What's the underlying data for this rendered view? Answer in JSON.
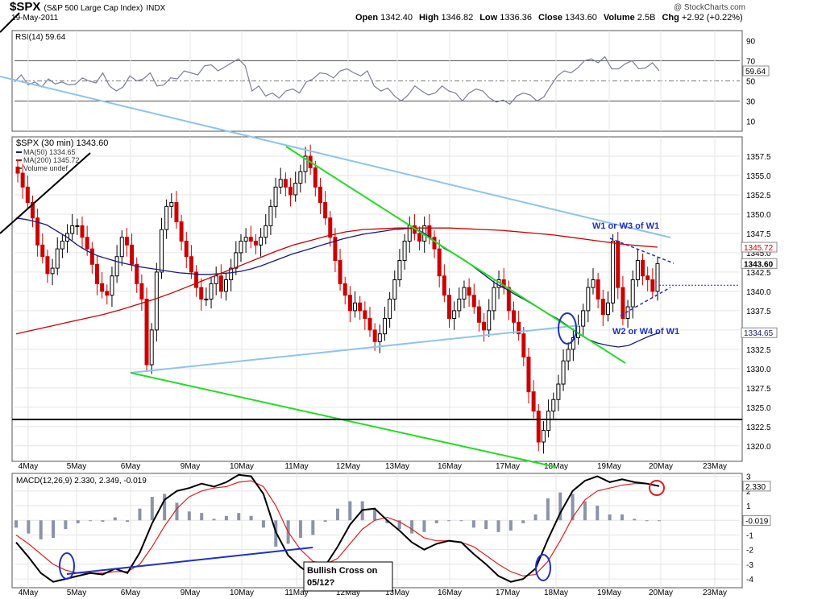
{
  "header": {
    "symbol": "$SPX",
    "description": "(S&P 500 Large Cap Index)",
    "exchange": "INDX",
    "date": "19-May-2011",
    "brand": "@ StockCharts.com",
    "ohlc": [
      {
        "label": "Open",
        "value": "1342.40"
      },
      {
        "label": "High",
        "value": "1346.82"
      },
      {
        "label": "Low",
        "value": "1336.36"
      },
      {
        "label": "Close",
        "value": "1343.60"
      },
      {
        "label": "Volume",
        "value": "2.5B"
      },
      {
        "label": "Chg",
        "value": "+2.92 (+0.22%)"
      }
    ]
  },
  "colors": {
    "ma50": "#1a1a80",
    "ma200": "#cc0000",
    "up_candle": "#000000",
    "down_candle": "#cc0000",
    "lightblue_trend": "#8ec3f0",
    "green_trend": "#22dd22",
    "annotation_blue": "#1f2fc8",
    "macd_hist": "#8c93a8"
  },
  "chart_data": [
    {
      "type": "line",
      "panel": "RSI",
      "label": "RSI(14) 59.64",
      "y_ticks": [
        10,
        30,
        50,
        70,
        90
      ],
      "ylim": [
        0,
        100
      ],
      "current_value_label": "59.64",
      "series": [
        {
          "name": "RSI(14)",
          "values": [
            49,
            56,
            46,
            49,
            44,
            52,
            47,
            49,
            46,
            47,
            53,
            50,
            48,
            58,
            45,
            40,
            44,
            55,
            50,
            52,
            58,
            45,
            46,
            53,
            52,
            60,
            58,
            56,
            65,
            66,
            60,
            64,
            68,
            72,
            65,
            40,
            45,
            35,
            38,
            33,
            40,
            42,
            38,
            49,
            52,
            58,
            57,
            53,
            60,
            62,
            58,
            55,
            60,
            45,
            40,
            43,
            35,
            30,
            36,
            45,
            40,
            36,
            38,
            45,
            40,
            38,
            30,
            38,
            42,
            40,
            33,
            29,
            31,
            27,
            35,
            38,
            36,
            30,
            34,
            45,
            55,
            60,
            58,
            63,
            70,
            72,
            68,
            74,
            62,
            62,
            67,
            70,
            62,
            63,
            68,
            60
          ]
        }
      ]
    },
    {
      "type": "candlestick",
      "panel": "price",
      "label": "$SPX (30 min) 1343.60",
      "legend": [
        {
          "name": "MA(50) 1334.65",
          "color": "#1a1a80"
        },
        {
          "name": "MA(200) 1345.72",
          "color": "#cc0000"
        },
        {
          "name": "Volume undef",
          "color": "#2a7a2a"
        }
      ],
      "y_ticks": [
        1320.0,
        1322.5,
        1325.0,
        1327.5,
        1330.0,
        1332.5,
        1335.0,
        1337.5,
        1340.0,
        1342.5,
        1345.0,
        1347.5,
        1350.0,
        1352.5,
        1355.0,
        1357.5
      ],
      "ylim": [
        1318,
        1360
      ],
      "x_ticks": [
        "4May",
        "5May",
        "6May",
        "9May",
        "10May",
        "11May",
        "12May",
        "13May",
        "16May",
        "17May",
        "18May",
        "19May",
        "20May",
        "23May"
      ],
      "closes": [
        1355.3,
        1353.5,
        1351.5,
        1349.5,
        1346.0,
        1344.5,
        1342.3,
        1343.0,
        1345.5,
        1346.5,
        1347.5,
        1348.5,
        1348.5,
        1347.0,
        1345.5,
        1343.5,
        1341.0,
        1340.0,
        1339.5,
        1342.0,
        1344.5,
        1347.0,
        1346.0,
        1343.5,
        1341.0,
        1339.0,
        1330.5,
        1335.0,
        1342.5,
        1348.0,
        1351.0,
        1351.5,
        1349.0,
        1346.5,
        1344.5,
        1342.5,
        1340.5,
        1339.0,
        1339.0,
        1341.0,
        1342.0,
        1340.0,
        1341.5,
        1343.0,
        1345.0,
        1346.5,
        1347.0,
        1346.5,
        1346.0,
        1347.0,
        1348.5,
        1351.0,
        1353.5,
        1354.5,
        1353.5,
        1352.5,
        1354.0,
        1355.5,
        1357.5,
        1356.0,
        1353.5,
        1351.5,
        1349.5,
        1347.0,
        1344.0,
        1341.0,
        1339.5,
        1337.5,
        1338.5,
        1337.5,
        1336.5,
        1335.0,
        1333.5,
        1334.5,
        1336.5,
        1339.0,
        1341.5,
        1344.0,
        1346.5,
        1348.5,
        1347.5,
        1346.5,
        1348.5,
        1347.0,
        1345.5,
        1342.0,
        1339.5,
        1336.5,
        1337.5,
        1339.0,
        1340.5,
        1339.5,
        1338.0,
        1336.0,
        1335.0,
        1337.5,
        1340.5,
        1341.5,
        1340.5,
        1337.5,
        1336.0,
        1334.5,
        1331.5,
        1327.0,
        1324.5,
        1320.5,
        1322.0,
        1324.5,
        1326.0,
        1328.0,
        1331.0,
        1332.5,
        1334.0,
        1335.5,
        1337.5,
        1340.5,
        1341.5,
        1339.0,
        1337.0,
        1338.5,
        1346.5,
        1340.5,
        1336.5,
        1338.0,
        1341.5,
        1344.0,
        1342.0,
        1341.5,
        1340.0,
        1343.6
      ],
      "ma50": [
        1349.5,
        1349.3,
        1349.0,
        1348.6,
        1347.8,
        1347.0,
        1346.0,
        1345.2,
        1344.6,
        1344.2,
        1343.8,
        1343.5,
        1343.2,
        1343.0,
        1342.8,
        1342.6,
        1342.4,
        1342.3,
        1342.2,
        1342.2,
        1342.3,
        1342.4,
        1342.6,
        1342.9,
        1343.3,
        1343.8,
        1344.3,
        1344.8,
        1345.2,
        1345.6,
        1346.0,
        1346.4,
        1346.8,
        1347.1,
        1347.4,
        1347.6,
        1347.8,
        1348.0,
        1348.1,
        1348.2,
        1347.5,
        1346.5,
        1345.5,
        1344.8,
        1344.0,
        1343.0,
        1342.0,
        1341.0,
        1340.3,
        1339.5,
        1338.8,
        1338.0,
        1337.2,
        1336.5,
        1335.6,
        1334.6,
        1333.8,
        1333.3,
        1333.0,
        1332.8,
        1333.0,
        1333.6,
        1334.2,
        1334.65
      ],
      "ma200": [
        1334.5,
        1335.0,
        1335.5,
        1336.0,
        1336.5,
        1337.0,
        1337.6,
        1338.3,
        1339.0,
        1339.8,
        1340.7,
        1341.6,
        1342.5,
        1343.4,
        1344.3,
        1345.2,
        1346.0,
        1346.6,
        1347.2,
        1347.7,
        1348.0,
        1348.1,
        1348.2,
        1348.2,
        1348.2,
        1348.2,
        1348.1,
        1348.0,
        1347.9,
        1347.7,
        1347.5,
        1347.3,
        1347.0,
        1346.7,
        1346.4,
        1346.1,
        1345.9,
        1345.72
      ],
      "annotations": [
        {
          "text": "W1 or W3 of W1"
        },
        {
          "text": "W2 or W4 of W1"
        }
      ],
      "current_value_labels": [
        "1345.72",
        "1343.60",
        "1334.65"
      ]
    },
    {
      "type": "line",
      "panel": "MACD",
      "label": "MACD(12,26,9) 2.330, 2.349, -0.019",
      "y_ticks": [
        3,
        2,
        1,
        0,
        -1,
        -2,
        -3,
        -4
      ],
      "ylim": [
        -4.6,
        3.2
      ],
      "x_ticks": [
        "4May",
        "5May",
        "6May",
        "9May",
        "10May",
        "11May",
        "12May",
        "13May",
        "16May",
        "17May",
        "18May",
        "19May",
        "20May",
        "23May"
      ],
      "current_value_labels": [
        "2.330",
        "-0.019"
      ],
      "series": [
        {
          "name": "MACD",
          "values": [
            -1.5,
            -2.5,
            -3.6,
            -4.2,
            -4.0,
            -3.8,
            -3.6,
            -3.7,
            -3.3,
            -3.6,
            -2.2,
            -0.2,
            1.4,
            2.0,
            2.2,
            2.5,
            2.3,
            2.6,
            3.1,
            3.0,
            1.8,
            -0.8,
            -2.4,
            -3.2,
            -3.8,
            -3.1,
            -1.8,
            -0.3,
            0.7,
            0.8,
            0.0,
            -0.7,
            -1.5,
            -2.0,
            -1.6,
            -1.4,
            -1.5,
            -2.3,
            -3.0,
            -3.8,
            -4.2,
            -4.0,
            -3.3,
            -1.3,
            0.5,
            2.0,
            2.7,
            3.0,
            2.6,
            2.8,
            2.6,
            2.5,
            2.33
          ]
        },
        {
          "name": "Signal",
          "values": [
            -1.0,
            -1.6,
            -2.3,
            -3.0,
            -3.4,
            -3.6,
            -3.6,
            -3.6,
            -3.5,
            -3.5,
            -3.0,
            -1.8,
            -0.4,
            0.8,
            1.6,
            2.0,
            2.2,
            2.3,
            2.6,
            2.7,
            2.3,
            1.0,
            -0.8,
            -2.0,
            -2.8,
            -3.0,
            -2.6,
            -1.6,
            -0.6,
            0.0,
            0.2,
            -0.1,
            -0.6,
            -1.2,
            -1.4,
            -1.4,
            -1.5,
            -1.8,
            -2.4,
            -3.0,
            -3.5,
            -3.8,
            -3.7,
            -2.8,
            -1.4,
            0.2,
            1.4,
            2.0,
            2.2,
            2.4,
            2.5,
            2.5,
            2.349
          ]
        },
        {
          "name": "Histogram",
          "values": [
            -0.5,
            -0.9,
            -1.3,
            -1.2,
            -0.6,
            -0.2,
            0.0,
            -0.1,
            0.2,
            -0.1,
            0.8,
            1.6,
            1.8,
            1.2,
            0.6,
            0.5,
            0.1,
            0.3,
            0.5,
            0.3,
            -0.5,
            -1.8,
            -1.6,
            -1.2,
            -1.0,
            -0.1,
            0.8,
            1.3,
            1.3,
            0.8,
            -0.2,
            -0.6,
            -0.9,
            -0.8,
            -0.2,
            0.0,
            0.0,
            -0.5,
            -0.6,
            -0.8,
            -0.7,
            -0.2,
            0.4,
            1.5,
            1.9,
            1.8,
            1.3,
            1.0,
            0.4,
            0.4,
            0.1,
            0.0,
            -0.019
          ]
        }
      ],
      "annotations": [
        {
          "text": "Bullish Cross on 05/12?"
        }
      ]
    }
  ]
}
